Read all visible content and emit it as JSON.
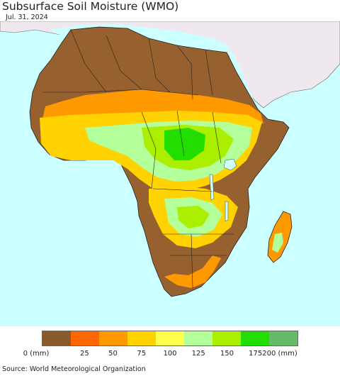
{
  "title": "Subsurface Soil Moisture (WMO)",
  "date": "Jul. 31, 2024",
  "source": "Source: World Meteorological Organization",
  "legend": {
    "labels": [
      "0 (mm)",
      "25",
      "50",
      "75",
      "100",
      "125",
      "150",
      "175",
      "200 (mm)"
    ],
    "colors": [
      "#8b5a2b",
      "#ff6600",
      "#ff9900",
      "#ffd200",
      "#ffff4d",
      "#b3ff99",
      "#aaee00",
      "#22dd00",
      "#66bb66"
    ]
  },
  "colors": {
    "ocean": "#ccffff",
    "land_outside": "#efe9ef",
    "dry": "#96612f",
    "border": "#000000"
  }
}
